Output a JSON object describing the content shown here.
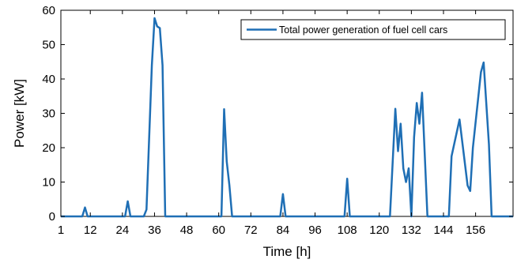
{
  "chart_data": {
    "type": "line",
    "xlabel": "Time [h]",
    "ylabel": "Power [kW]",
    "xlim": [
      1,
      170
    ],
    "ylim": [
      0,
      60
    ],
    "xticks": [
      1,
      12,
      24,
      36,
      48,
      60,
      72,
      84,
      96,
      108,
      120,
      132,
      144,
      156
    ],
    "yticks": [
      0,
      10,
      20,
      30,
      40,
      50,
      60
    ],
    "grid": false,
    "legend_position": "top-right",
    "series": [
      {
        "name": "Total power generation of fuel cell cars",
        "color": "#1f6fb5",
        "points": [
          [
            1,
            0
          ],
          [
            9,
            0
          ],
          [
            10,
            2.6
          ],
          [
            11,
            0
          ],
          [
            25,
            0
          ],
          [
            26,
            4.4
          ],
          [
            27,
            0
          ],
          [
            32,
            0
          ],
          [
            33,
            2
          ],
          [
            35,
            44
          ],
          [
            36,
            57.7
          ],
          [
            37,
            55.3
          ],
          [
            38,
            54.8
          ],
          [
            39,
            44
          ],
          [
            40,
            0
          ],
          [
            61,
            0
          ],
          [
            62,
            31.2
          ],
          [
            63,
            16
          ],
          [
            64,
            9
          ],
          [
            65,
            0
          ],
          [
            83,
            0
          ],
          [
            84,
            6.5
          ],
          [
            85,
            0
          ],
          [
            107,
            0
          ],
          [
            108,
            11
          ],
          [
            109,
            0
          ],
          [
            124,
            0
          ],
          [
            126,
            31.3
          ],
          [
            127,
            19
          ],
          [
            128,
            27
          ],
          [
            129,
            14
          ],
          [
            130,
            10
          ],
          [
            131,
            14
          ],
          [
            132,
            0
          ],
          [
            133,
            23
          ],
          [
            134,
            33
          ],
          [
            135,
            27
          ],
          [
            136,
            36
          ],
          [
            138,
            0
          ],
          [
            146,
            0
          ],
          [
            147,
            17.5
          ],
          [
            150,
            28.2
          ],
          [
            153,
            9
          ],
          [
            154,
            7.4
          ],
          [
            155,
            20
          ],
          [
            158,
            42
          ],
          [
            159,
            44.8
          ],
          [
            161,
            21
          ],
          [
            162,
            0
          ],
          [
            170,
            0
          ]
        ]
      }
    ]
  }
}
